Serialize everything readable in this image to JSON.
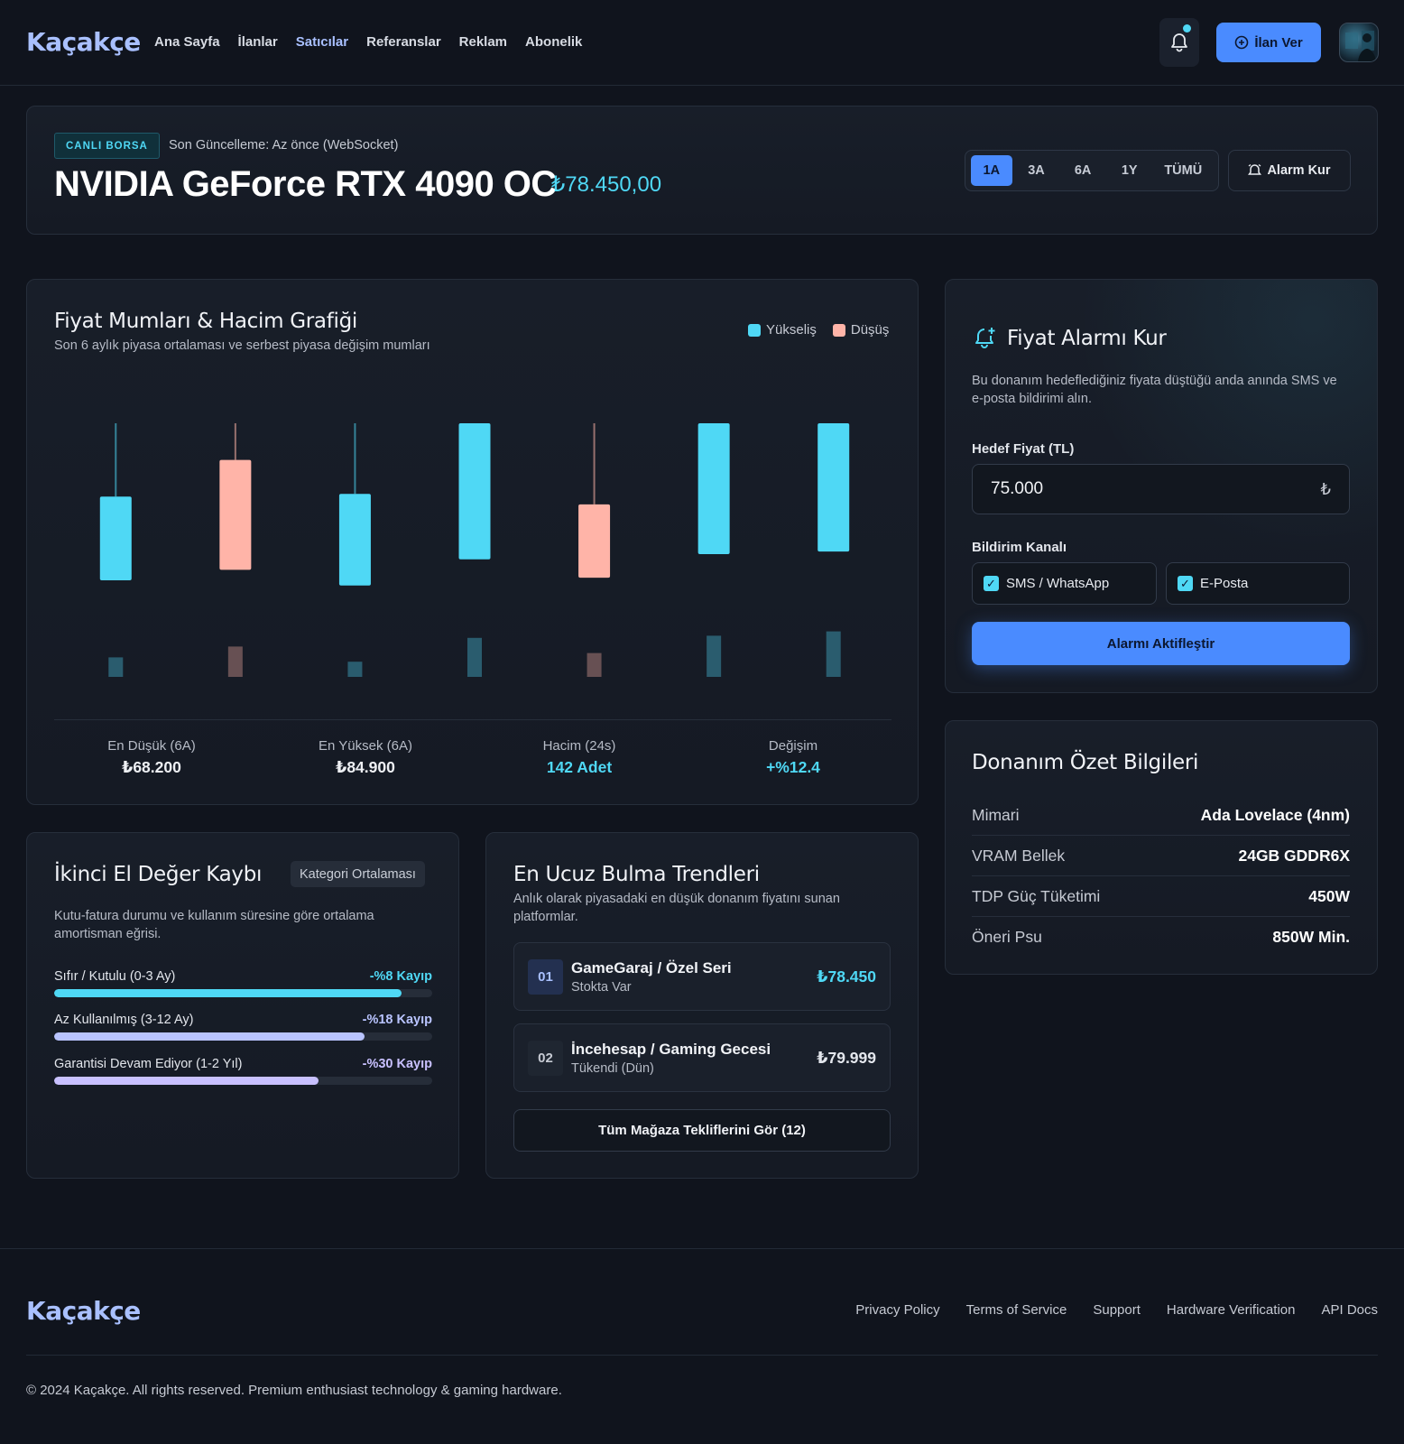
{
  "brand": "Kaçakçe",
  "nav": [
    "Ana Sayfa",
    "İlanlar",
    "Satıcılar",
    "Referanslar",
    "Reklam",
    "Abonelik"
  ],
  "nav_active_index": 2,
  "header": {
    "post_button": "İlan Ver"
  },
  "product": {
    "badge": "CANLI BORSA",
    "updated": "Son Güncelleme: Az önce (WebSocket)",
    "title": "NVIDIA GeForce RTX 4090 OC",
    "price": "₺78.450,00",
    "ranges": [
      "1A",
      "3A",
      "6A",
      "1Y",
      "TÜMÜ"
    ],
    "active_range": "1A",
    "alarm_button": "Alarm Kur"
  },
  "chart": {
    "title": "Fiyat Mumları & Hacim Grafiği",
    "subtitle": "Son 6 aylık piyasa ortalaması ve serbest piyasa değişim mumları",
    "legend_up": "Yükseliş",
    "legend_down": "Düşüş",
    "colors": {
      "up": "#4fd8f5",
      "down": "#ffb4a8"
    },
    "stats": [
      {
        "label": "En Düşük (6A)",
        "value": "₺68.200",
        "color": "#eef0f4"
      },
      {
        "label": "En Yüksek (6A)",
        "value": "₺84.900",
        "color": "#eef0f4"
      },
      {
        "label": "Hacim (24s)",
        "value": "142 Adet",
        "color": "#4fd8f5"
      },
      {
        "label": "Değişim",
        "value": "+%12.4",
        "color": "#4fd8f5"
      }
    ]
  },
  "chart_data": {
    "type": "candlestick",
    "up_color": "#4fd8f5",
    "down_color": "#ffb4a8",
    "candles": [
      {
        "dir": "up",
        "open": 30,
        "close": 62,
        "high": 90,
        "low": 30,
        "volume": 9
      },
      {
        "dir": "down",
        "open": 76,
        "close": 34,
        "high": 90,
        "low": 34,
        "volume": 14
      },
      {
        "dir": "up",
        "open": 28,
        "close": 63,
        "high": 90,
        "low": 28,
        "volume": 7
      },
      {
        "dir": "up",
        "open": 38,
        "close": 90,
        "high": 90,
        "low": 38,
        "volume": 18
      },
      {
        "dir": "down",
        "open": 59,
        "close": 31,
        "high": 90,
        "low": 31,
        "volume": 11
      },
      {
        "dir": "up",
        "open": 40,
        "close": 90,
        "high": 90,
        "low": 40,
        "volume": 19
      },
      {
        "dir": "up",
        "open": 41,
        "close": 90,
        "high": 90,
        "low": 41,
        "volume": 21
      }
    ],
    "ylim": [
      0,
      100
    ],
    "volume_max": 25
  },
  "alarm": {
    "title": "Fiyat Alarmı Kur",
    "desc": "Bu donanım hedeflediğiniz fiyata düştüğü anda anında SMS ve e-posta bildirimi alın.",
    "target_label": "Hedef Fiyat (TL)",
    "target_value": "75.000",
    "currency": "₺",
    "channel_label": "Bildirim Kanalı",
    "channels": [
      "SMS / WhatsApp",
      "E-Posta"
    ],
    "activate": "Alarmı Aktifleştir"
  },
  "specs": {
    "title": "Donanım Özet Bilgileri",
    "rows": [
      {
        "k": "Mimari",
        "v": "Ada Lovelace (4nm)"
      },
      {
        "k": "VRAM Bellek",
        "v": "24GB GDDR6X"
      },
      {
        "k": "TDP Güç Tüketimi",
        "v": "450W"
      },
      {
        "k": "Öneri Psu",
        "v": "850W Min."
      }
    ]
  },
  "depreciation": {
    "title": "İkinci El Değer Kaybı",
    "pill": "Kategori Ortalaması",
    "desc": "Kutu-fatura durumu ve kullanım süresine göre ortalama amortisman eğrisi.",
    "rows": [
      {
        "label": "Sıfır / Kutulu (0-3 Ay)",
        "loss": "-%8 Kayıp",
        "fraction": 0.92,
        "color": "#4fd8f5"
      },
      {
        "label": "Az Kullanılmış (3-12 Ay)",
        "loss": "-%18 Kayıp",
        "fraction": 0.82,
        "color": "#b9c4ff"
      },
      {
        "label": "Garantisi Devam Ediyor (1-2 Yıl)",
        "loss": "-%30 Kayıp",
        "fraction": 0.7,
        "color": "#c8c0ff"
      }
    ]
  },
  "trends": {
    "title": "En Ucuz Bulma Trendleri",
    "desc": "Anlık olarak piyasadaki en düşük donanım fiyatını sunan platformlar.",
    "stores": [
      {
        "num": "01",
        "name": "GameGaraj / Özel Seri",
        "stock": "Stokta Var",
        "price": "₺78.450"
      },
      {
        "num": "02",
        "name": "İncehesap / Gaming Gecesi",
        "stock": "Tükendi (Dün)",
        "price": "₺79.999"
      }
    ],
    "all_offers": "Tüm Mağaza Tekliflerini Gör (12)"
  },
  "footer": {
    "links": [
      "Privacy Policy",
      "Terms of Service",
      "Support",
      "Hardware Verification",
      "API Docs"
    ],
    "copyright": "© 2024 Kaçakçe. All rights reserved. Premium enthusiast technology & gaming hardware."
  }
}
